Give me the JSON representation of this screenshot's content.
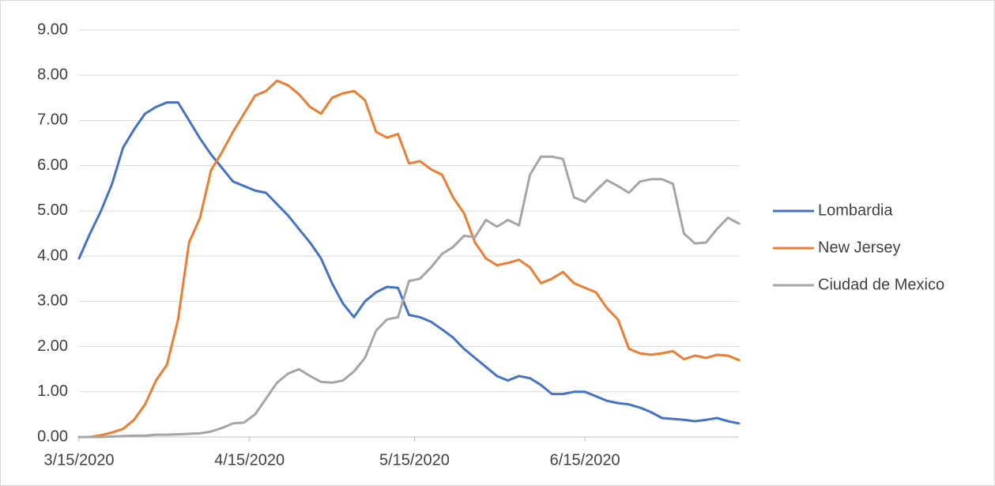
{
  "chart_data": {
    "type": "line",
    "x": [
      "3/15/2020",
      "3/17/2020",
      "3/19/2020",
      "3/21/2020",
      "3/23/2020",
      "3/25/2020",
      "3/27/2020",
      "3/29/2020",
      "3/31/2020",
      "4/2/2020",
      "4/4/2020",
      "4/6/2020",
      "4/8/2020",
      "4/10/2020",
      "4/12/2020",
      "4/14/2020",
      "4/16/2020",
      "4/18/2020",
      "4/20/2020",
      "4/22/2020",
      "4/24/2020",
      "4/26/2020",
      "4/28/2020",
      "4/30/2020",
      "5/2/2020",
      "5/4/2020",
      "5/6/2020",
      "5/8/2020",
      "5/10/2020",
      "5/12/2020",
      "5/14/2020",
      "5/16/2020",
      "5/18/2020",
      "5/20/2020",
      "5/22/2020",
      "5/24/2020",
      "5/26/2020",
      "5/28/2020",
      "5/30/2020",
      "6/1/2020",
      "6/3/2020",
      "6/5/2020",
      "6/7/2020",
      "6/9/2020",
      "6/11/2020",
      "6/13/2020",
      "6/15/2020",
      "6/17/2020",
      "6/19/2020",
      "6/21/2020",
      "6/23/2020",
      "6/25/2020",
      "6/27/2020",
      "6/29/2020",
      "7/1/2020",
      "7/3/2020",
      "7/5/2020",
      "7/7/2020",
      "7/9/2020",
      "7/11/2020",
      "7/13/2020"
    ],
    "series": [
      {
        "name": "Lombardia",
        "color": "#4472c4",
        "values": [
          3.95,
          4.5,
          5.0,
          5.6,
          6.4,
          6.8,
          7.15,
          7.3,
          7.4,
          7.4,
          7.0,
          6.6,
          6.25,
          5.95,
          5.65,
          5.55,
          5.45,
          5.4,
          5.15,
          4.9,
          4.6,
          4.3,
          3.95,
          3.4,
          2.95,
          2.65,
          3.0,
          3.2,
          3.32,
          3.3,
          2.7,
          2.65,
          2.55,
          2.38,
          2.2,
          1.95,
          1.75,
          1.55,
          1.35,
          1.25,
          1.35,
          1.3,
          1.15,
          0.95,
          0.95,
          1.0,
          1.0,
          0.9,
          0.8,
          0.75,
          0.72,
          0.65,
          0.55,
          0.42,
          0.4,
          0.38,
          0.35,
          0.38,
          0.42,
          0.35,
          0.3
        ]
      },
      {
        "name": "New Jersey",
        "color": "#ed7d31",
        "values": [
          0,
          0,
          0.04,
          0.1,
          0.18,
          0.38,
          0.72,
          1.25,
          1.6,
          2.6,
          4.3,
          4.85,
          5.9,
          6.3,
          6.75,
          7.15,
          7.55,
          7.65,
          7.88,
          7.78,
          7.58,
          7.3,
          7.15,
          7.5,
          7.6,
          7.65,
          7.45,
          6.75,
          6.62,
          6.7,
          6.05,
          6.1,
          5.92,
          5.8,
          5.3,
          4.95,
          4.3,
          3.95,
          3.8,
          3.85,
          3.92,
          3.75,
          3.4,
          3.5,
          3.65,
          3.4,
          3.3,
          3.2,
          2.85,
          2.6,
          1.95,
          1.85,
          1.82,
          1.85,
          1.9,
          1.72,
          1.8,
          1.75,
          1.82,
          1.8,
          1.7
        ]
      },
      {
        "name": "Ciudad de Mexico",
        "color": "#a5a5a5",
        "values": [
          0,
          0,
          0,
          0.01,
          0.02,
          0.03,
          0.03,
          0.05,
          0.05,
          0.06,
          0.07,
          0.08,
          0.12,
          0.2,
          0.3,
          0.32,
          0.5,
          0.85,
          1.2,
          1.4,
          1.5,
          1.35,
          1.22,
          1.2,
          1.25,
          1.45,
          1.75,
          2.35,
          2.6,
          2.65,
          3.45,
          3.5,
          3.75,
          4.05,
          4.2,
          4.45,
          4.42,
          4.8,
          4.65,
          4.8,
          4.68,
          5.8,
          6.2,
          6.2,
          6.15,
          5.3,
          5.2,
          5.45,
          5.68,
          5.55,
          5.4,
          5.65,
          5.7,
          5.7,
          5.6,
          4.5,
          4.28,
          4.3,
          4.6,
          4.85,
          4.72
        ]
      }
    ],
    "xlim": [
      "3/15/2020",
      "7/13/2020"
    ],
    "xticks": [
      "3/15/2020",
      "4/15/2020",
      "5/15/2020",
      "6/15/2020"
    ],
    "ylim": [
      0,
      9
    ],
    "yticks": [
      {
        "value": 0,
        "label": "0.00"
      },
      {
        "value": 1,
        "label": "1.00"
      },
      {
        "value": 2,
        "label": "2.00"
      },
      {
        "value": 3,
        "label": "3.00"
      },
      {
        "value": 4,
        "label": "4.00"
      },
      {
        "value": 5,
        "label": "5.00"
      },
      {
        "value": 6,
        "label": "6.00"
      },
      {
        "value": 7,
        "label": "7.00"
      },
      {
        "value": 8,
        "label": "8.00"
      },
      {
        "value": 9,
        "label": "9.00"
      }
    ],
    "grid": true,
    "legend": "right"
  }
}
